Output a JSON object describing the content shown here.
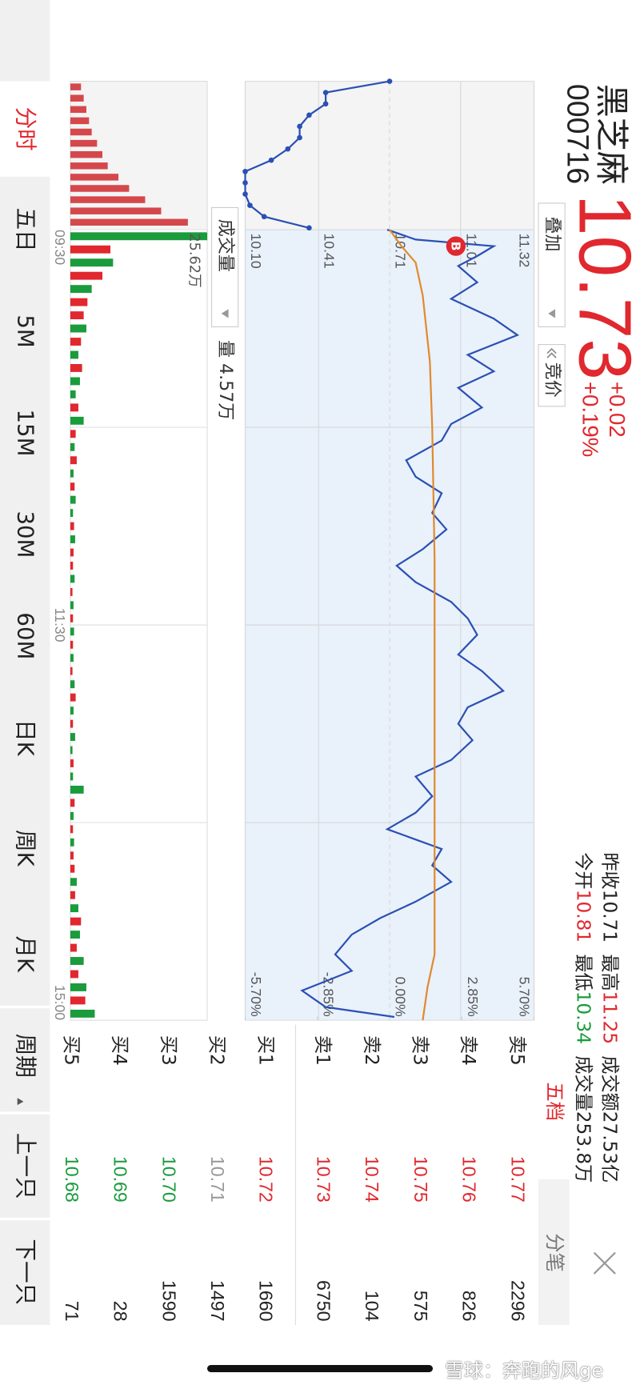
{
  "header": {
    "name": "黑芝麻",
    "code": "000716",
    "price": "10.73",
    "change": "+0.02",
    "change_pct": "+0.19%"
  },
  "stats": [
    {
      "label": "昨收",
      "value": "10.71",
      "color": "#222222"
    },
    {
      "label": "最高",
      "value": "11.25",
      "color": "#e0282e"
    },
    {
      "label": "成交额",
      "value": "27.53亿",
      "color": "#222222"
    },
    {
      "label": "今开",
      "value": "10.81",
      "color": "#e0282e"
    },
    {
      "label": "最低",
      "value": "10.34",
      "color": "#1a9b3c"
    },
    {
      "label": "成交量",
      "value": "253.8万",
      "color": "#222222"
    }
  ],
  "controls": {
    "overlay": "叠加",
    "auction": "竞价",
    "indicator": "成交量",
    "volume": "量 4.57万"
  },
  "tabs": [
    "分时",
    "五日",
    "5M",
    "15M",
    "30M",
    "60M",
    "日K",
    "周K",
    "月K",
    "周期",
    "上一只",
    "下一只"
  ],
  "order_book": {
    "tabs": [
      "五档",
      "分笔"
    ],
    "rows": [
      {
        "label": "卖5",
        "price": "10.77",
        "volume": "2296",
        "color": "#e0282e"
      },
      {
        "label": "卖4",
        "price": "10.76",
        "volume": "826",
        "color": "#e0282e"
      },
      {
        "label": "卖3",
        "price": "10.75",
        "volume": "575",
        "color": "#e0282e"
      },
      {
        "label": "卖2",
        "price": "10.74",
        "volume": "104",
        "color": "#e0282e"
      },
      {
        "label": "卖1",
        "price": "10.73",
        "volume": "6750",
        "color": "#e0282e"
      },
      {
        "label": "买1",
        "price": "10.72",
        "volume": "1660",
        "color": "#e0282e"
      },
      {
        "label": "买2",
        "price": "10.71",
        "volume": "1497",
        "color": "#999999"
      },
      {
        "label": "买3",
        "price": "10.70",
        "volume": "1590",
        "color": "#1a9b3c"
      },
      {
        "label": "买4",
        "price": "10.69",
        "volume": "28",
        "color": "#1a9b3c"
      },
      {
        "label": "买5",
        "price": "10.68",
        "volume": "71",
        "color": "#1a9b3c"
      }
    ]
  },
  "watermark": "雪球：奔跑的风ge",
  "chart_data": [
    {
      "type": "line",
      "color": "#2b50b4",
      "markers": true,
      "ylim": [
        10.1,
        11.32
      ],
      "values": [
        10.71,
        10.44,
        10.44,
        10.37,
        10.33,
        10.33,
        10.28,
        10.21,
        10.1,
        10.1,
        10.1,
        10.12,
        10.18,
        10.37
      ]
    },
    {
      "type": "line",
      "xlim": [
        0,
        240
      ],
      "ylim": [
        10.1,
        11.32
      ],
      "grid": true,
      "yticks": [
        11.32,
        11.01,
        10.71,
        10.41,
        {
          "value": 10.1,
          "label": "10.10"
        }
      ],
      "y2lim": [
        -5.7,
        5.7
      ],
      "y2ticks": [
        {
          "value": 5.7,
          "label": "5.70%"
        },
        {
          "value": 2.85,
          "label": "2.85%"
        },
        {
          "value": 0,
          "label": "0.00%"
        },
        {
          "value": -2.85,
          "label": "-2.85%"
        },
        {
          "value": -5.7,
          "label": "-5.70%"
        }
      ],
      "series": [
        {
          "color": "#2b50b4",
          "x": [
            0,
            3,
            5,
            8,
            11,
            16,
            21,
            27,
            32,
            38,
            43,
            48,
            54,
            59,
            64,
            70,
            75,
            80,
            86,
            91,
            97,
            102,
            107,
            113,
            118,
            123,
            129,
            134,
            140,
            145,
            150,
            155,
            161,
            166,
            172,
            177,
            182,
            188,
            193,
            198,
            204,
            209,
            214,
            220,
            225,
            231,
            236,
            239
          ],
          "values": [
            10.7,
            10.82,
            11.15,
            11.08,
            11.0,
            11.08,
            10.97,
            11.15,
            11.25,
            11.04,
            11.15,
            11.0,
            11.1,
            10.97,
            10.93,
            10.78,
            10.82,
            10.93,
            10.89,
            10.95,
            10.85,
            10.74,
            10.82,
            10.97,
            11.04,
            11.08,
            11.0,
            11.1,
            11.19,
            11.04,
            11.0,
            11.06,
            10.97,
            10.82,
            10.89,
            10.82,
            10.7,
            10.93,
            10.89,
            10.97,
            10.82,
            10.67,
            10.55,
            10.48,
            10.55,
            10.34,
            10.44,
            10.73
          ]
        },
        {
          "color": "#e08a2e",
          "x": [
            0,
            5,
            10,
            20,
            40,
            60,
            100,
            150,
            180,
            200,
            220,
            230,
            240
          ],
          "values": [
            10.71,
            10.76,
            10.82,
            10.85,
            10.88,
            10.89,
            10.9,
            10.9,
            10.9,
            10.9,
            10.9,
            10.87,
            10.85
          ]
        }
      ],
      "annotations": [
        {
          "label": "B",
          "x": 5,
          "y": 10.99,
          "color": "#e0282e"
        }
      ]
    },
    {
      "type": "bar",
      "xlim": [
        0,
        240
      ],
      "ylim": [
        0,
        25.62
      ],
      "xticks": [
        {
          "value": 0,
          "label": "09:30"
        },
        {
          "value": 120,
          "label": "11:30"
        },
        {
          "value": 240,
          "label": "15:00"
        }
      ],
      "yticks": [
        {
          "value": 25.62,
          "label": "25.62万"
        }
      ],
      "values": [
        25.62,
        7.5,
        8.0,
        6.0,
        4.0,
        3.2,
        2.5,
        3.0,
        2.0,
        1.5,
        2.2,
        1.8,
        1.0,
        1.5,
        2.5,
        1.0,
        0.8,
        1.2,
        0.6,
        0.8,
        1.0,
        0.5,
        0.7,
        0.9,
        0.6,
        0.5,
        0.8,
        0.4,
        0.6,
        0.5,
        0.7,
        0.5,
        0.6,
        0.4,
        0.8,
        1.0,
        0.6,
        0.5,
        0.9,
        0.4,
        0.6,
        0.5,
        2.5,
        0.8,
        0.6,
        0.5,
        0.7,
        0.6,
        0.8,
        1.2,
        0.9,
        1.5,
        2.0,
        1.8,
        1.2,
        2.5,
        1.5,
        3.0,
        2.8,
        4.57
      ],
      "colors": [
        "#1a9b3c",
        "#e0282e",
        "#1a9b3c",
        "#e0282e",
        "#1a9b3c",
        "#e0282e",
        "#e0282e",
        "#1a9b3c",
        "#e0282e",
        "#1a9b3c",
        "#e0282e",
        "#1a9b3c",
        "#1a9b3c",
        "#e0282e",
        "#1a9b3c",
        "#e0282e",
        "#1a9b3c",
        "#e0282e",
        "#1a9b3c",
        "#e0282e",
        "#1a9b3c",
        "#1a9b3c",
        "#e0282e",
        "#1a9b3c",
        "#e0282e",
        "#e0282e",
        "#1a9b3c",
        "#e0282e",
        "#1a9b3c",
        "#e0282e",
        "#1a9b3c",
        "#e0282e",
        "#1a9b3c",
        "#e0282e",
        "#1a9b3c",
        "#e0282e",
        "#1a9b3c",
        "#e0282e",
        "#1a9b3c",
        "#1a9b3c",
        "#e0282e",
        "#1a9b3c",
        "#1a9b3c",
        "#e0282e",
        "#1a9b3c",
        "#e0282e",
        "#1a9b3c",
        "#e0282e",
        "#e0282e",
        "#1a9b3c",
        "#e0282e",
        "#1a9b3c",
        "#e0282e",
        "#1a9b3c",
        "#e0282e",
        "#1a9b3c",
        "#e0282e",
        "#1a9b3c",
        "#e0282e",
        "#1a9b3c"
      ]
    },
    {
      "type": "bar",
      "ylim": [
        0,
        25.62
      ],
      "color": "#d4484c",
      "values": [
        2.0,
        2.5,
        3.0,
        3.5,
        4.0,
        5.0,
        6.0,
        7.0,
        9.0,
        11.0,
        14.0,
        17.0,
        22.0
      ]
    }
  ]
}
